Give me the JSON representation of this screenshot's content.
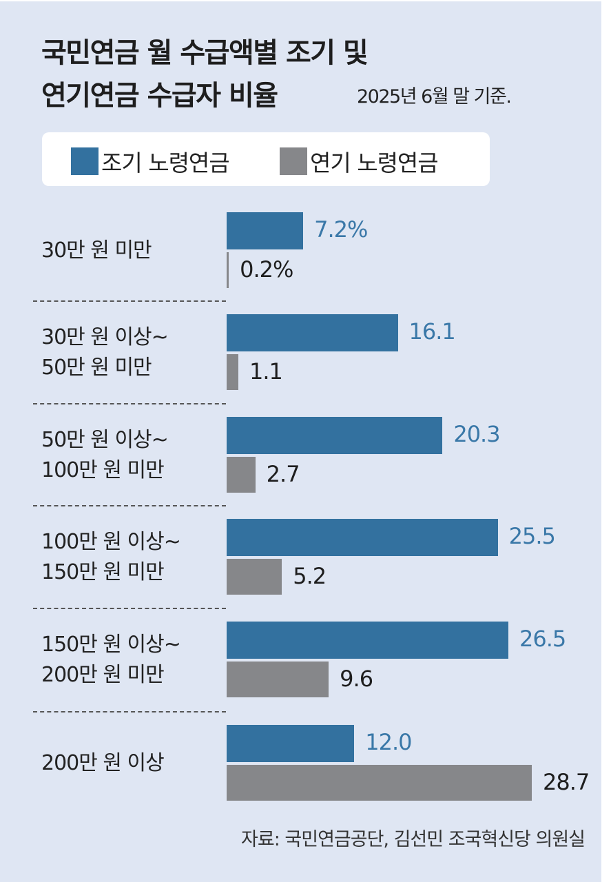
{
  "chart_data": {
    "type": "bar",
    "orientation": "horizontal",
    "title_lines": [
      "국민연금 월 수급액별 조기 및",
      "연기연금 수급자 비율"
    ],
    "subtitle": "2025년 6월 말 기준.",
    "unit": "%",
    "categories": [
      [
        "30만 원 미만"
      ],
      [
        "30만 원 이상~",
        "50만 원 미만"
      ],
      [
        "50만 원 이상~",
        "100만 원 미만"
      ],
      [
        "100만 원 이상~",
        "150만 원 미만"
      ],
      [
        "150만 원 이상~",
        "200만 원 미만"
      ],
      [
        "200만 원 이상"
      ]
    ],
    "series": [
      {
        "name": "조기 노령연금",
        "color": "#33719f",
        "label_color": "#3a78a8",
        "values": [
          7.2,
          16.1,
          20.3,
          25.5,
          26.5,
          12.0
        ],
        "labels": [
          "7.2%",
          "16.1",
          "20.3",
          "25.5",
          "26.5",
          "12.0"
        ]
      },
      {
        "name": "연기 노령연금",
        "color": "#86878a",
        "label_color": "#1e1e1e",
        "values": [
          0.2,
          1.1,
          2.7,
          5.2,
          9.6,
          28.7
        ],
        "labels": [
          "0.2%",
          "1.1",
          "2.7",
          "5.2",
          "9.6",
          "28.7"
        ]
      }
    ],
    "xlim": [
      0,
      28.7
    ],
    "grid": false,
    "legend_position": "top",
    "source": "자료: 국민연금공단, 김선민 조국혁신당 의원실"
  }
}
